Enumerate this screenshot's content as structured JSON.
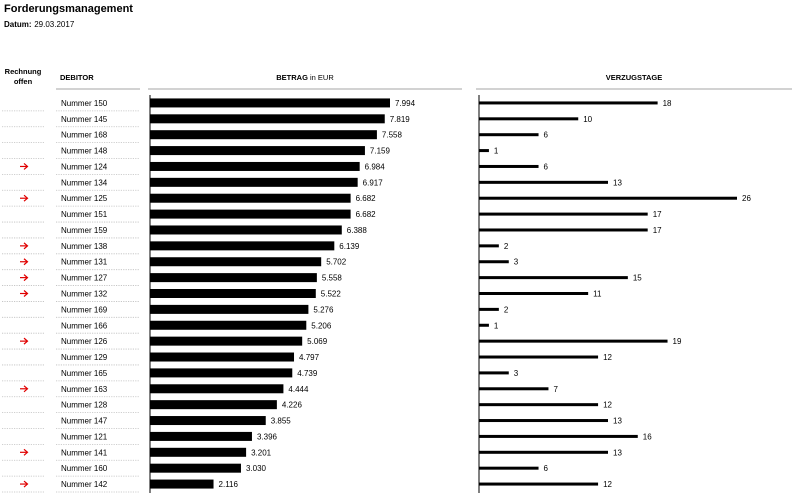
{
  "header": {
    "title": "Forderungsmanagement",
    "date_label": "Datum:",
    "date_value": "29.03.2017"
  },
  "columns": {
    "open_invoice_line1": "Rechnung",
    "open_invoice_line2": "offen",
    "debtor": "DEBITOR",
    "amount": "BETRAG",
    "amount_unit": "in EUR",
    "overdue_days": "VERZUGSTAGE"
  },
  "colors": {
    "bar": "#000000",
    "flag_arrow": "#e00000",
    "divider": "#a6a6a6"
  },
  "flag_icon": "right-arrow-icon",
  "chart_data": [
    {
      "type": "bar",
      "orientation": "horizontal",
      "title": "BETRAG",
      "unit": "in EUR",
      "categories": [
        "Nummer 150",
        "Nummer 145",
        "Nummer 168",
        "Nummer 148",
        "Nummer 124",
        "Nummer 134",
        "Nummer 125",
        "Nummer 151",
        "Nummer 159",
        "Nummer 138",
        "Nummer 131",
        "Nummer 127",
        "Nummer 132",
        "Nummer 169",
        "Nummer 166",
        "Nummer 126",
        "Nummer 129",
        "Nummer 165",
        "Nummer 163",
        "Nummer 128",
        "Nummer 147",
        "Nummer 121",
        "Nummer 141",
        "Nummer 160",
        "Nummer 142"
      ],
      "values": [
        7994,
        7819,
        7558,
        7159,
        6984,
        6917,
        6682,
        6682,
        6388,
        6139,
        5702,
        5558,
        5522,
        5276,
        5206,
        5069,
        4797,
        4739,
        4444,
        4226,
        3855,
        3396,
        3201,
        3030,
        2116
      ],
      "labels": [
        "7.994",
        "7.819",
        "7.558",
        "7.159",
        "6.984",
        "6.917",
        "6.682",
        "6.682",
        "6.388",
        "6.139",
        "5.702",
        "5.558",
        "5.522",
        "5.276",
        "5.206",
        "5.069",
        "4.797",
        "4.739",
        "4.444",
        "4.226",
        "3.855",
        "3.396",
        "3.201",
        "3.030",
        "2.116"
      ],
      "xlim": [
        0,
        9000
      ]
    },
    {
      "type": "bar",
      "orientation": "horizontal",
      "title": "VERZUGSTAGE",
      "categories": [
        "Nummer 150",
        "Nummer 145",
        "Nummer 168",
        "Nummer 148",
        "Nummer 124",
        "Nummer 134",
        "Nummer 125",
        "Nummer 151",
        "Nummer 159",
        "Nummer 138",
        "Nummer 131",
        "Nummer 127",
        "Nummer 132",
        "Nummer 169",
        "Nummer 166",
        "Nummer 126",
        "Nummer 129",
        "Nummer 165",
        "Nummer 163",
        "Nummer 128",
        "Nummer 147",
        "Nummer 121",
        "Nummer 141",
        "Nummer 160",
        "Nummer 142"
      ],
      "values": [
        18,
        10,
        6,
        1,
        6,
        13,
        26,
        17,
        17,
        2,
        3,
        15,
        11,
        2,
        1,
        19,
        12,
        3,
        7,
        12,
        13,
        16,
        13,
        6,
        12
      ],
      "xlim": [
        0,
        27
      ]
    }
  ],
  "open_invoice_flags": [
    false,
    false,
    false,
    false,
    true,
    false,
    true,
    false,
    false,
    true,
    true,
    true,
    true,
    false,
    false,
    true,
    false,
    false,
    true,
    false,
    false,
    false,
    true,
    false,
    true
  ]
}
